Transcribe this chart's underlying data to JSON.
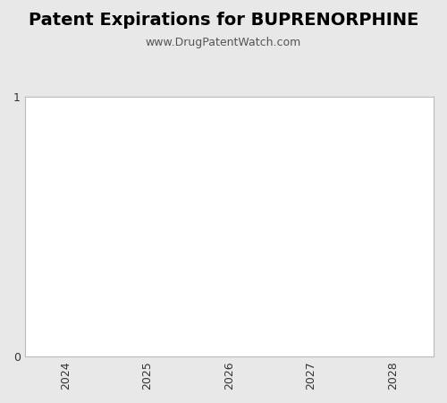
{
  "title": "Patent Expirations for BUPRENORPHINE",
  "subtitle": "www.DrugPatentWatch.com",
  "xlim": [
    2023.5,
    2028.5
  ],
  "ylim": [
    0,
    1
  ],
  "xticks": [
    2024,
    2025,
    2026,
    2027,
    2028
  ],
  "yticks": [
    0,
    1
  ],
  "plot_bg_color": "#ffffff",
  "figure_bg_color": "#e8e8e8",
  "title_fontsize": 14,
  "subtitle_fontsize": 9,
  "tick_label_fontsize": 9,
  "spine_color": "#bbbbbb",
  "subtitle_color": "#555555",
  "title_color": "#000000"
}
